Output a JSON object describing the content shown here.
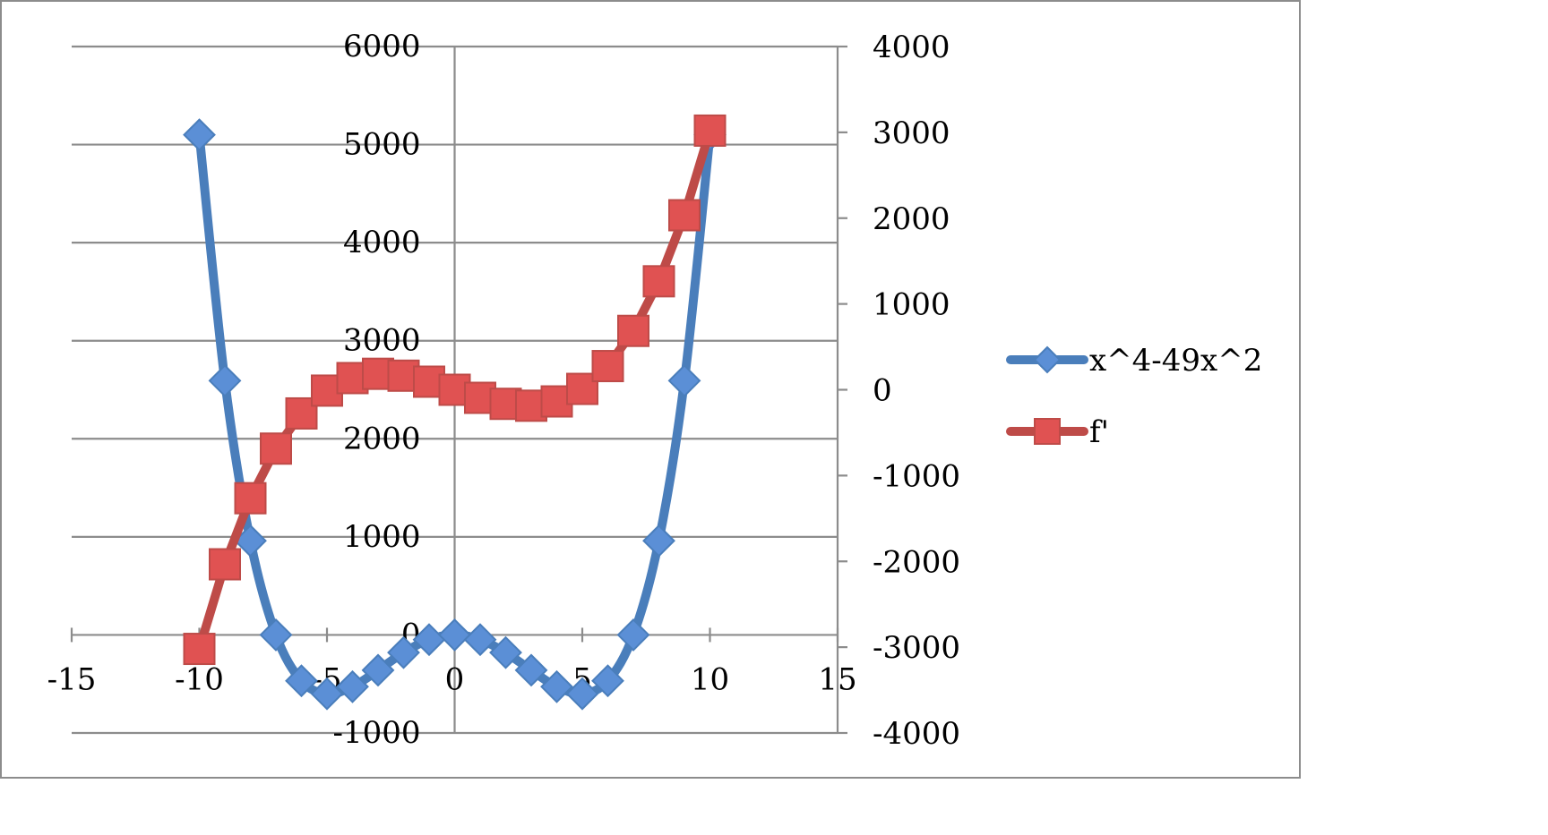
{
  "chart_data": {
    "type": "scatter",
    "x_axis": {
      "min": -15,
      "max": 15,
      "ticks": [
        -15,
        -10,
        -5,
        0,
        5,
        10,
        15
      ],
      "tick_labels": [
        "-15",
        "-10",
        "-5",
        "0",
        "5",
        "10",
        "15"
      ]
    },
    "y_axis_primary": {
      "min": -1000,
      "max": 6000,
      "ticks": [
        -1000,
        0,
        1000,
        2000,
        3000,
        4000,
        5000,
        6000
      ],
      "tick_labels": [
        "-1000",
        "0",
        "1000",
        "2000",
        "3000",
        "4000",
        "5000",
        "6000"
      ]
    },
    "y_axis_secondary": {
      "min": -4000,
      "max": 4000,
      "ticks": [
        -4000,
        -3000,
        -2000,
        -1000,
        0,
        1000,
        2000,
        3000,
        4000
      ],
      "tick_labels": [
        "-4000",
        "-3000",
        "-2000",
        "-1000",
        "0",
        "1000",
        "2000",
        "3000",
        "4000"
      ]
    },
    "grid": true,
    "legend_position": "right",
    "x": [
      -10,
      -9,
      -8,
      -7,
      -6,
      -5,
      -4,
      -3,
      -2,
      -1,
      0,
      1,
      2,
      3,
      4,
      5,
      6,
      7,
      8,
      9,
      10
    ],
    "series": [
      {
        "name": "x^4-49x^2",
        "axis": "primary",
        "marker": "diamond",
        "color": "#4a7ebb",
        "marker_fill": "#5b8fd6",
        "smooth": true,
        "values": [
          5100,
          2592,
          960,
          0,
          -468,
          -600,
          -528,
          -360,
          -180,
          -48,
          0,
          -48,
          -180,
          -360,
          -528,
          -600,
          -468,
          0,
          960,
          2592,
          5100
        ]
      },
      {
        "name": "f'",
        "axis": "secondary",
        "marker": "square",
        "color": "#be4b48",
        "marker_fill": "#e05252",
        "smooth": false,
        "values": [
          -3020,
          -2034,
          -1264,
          -686,
          -276,
          -10,
          136,
          186,
          164,
          94,
          0,
          -94,
          -164,
          -186,
          -136,
          10,
          276,
          686,
          1264,
          2034,
          3020
        ]
      }
    ]
  }
}
